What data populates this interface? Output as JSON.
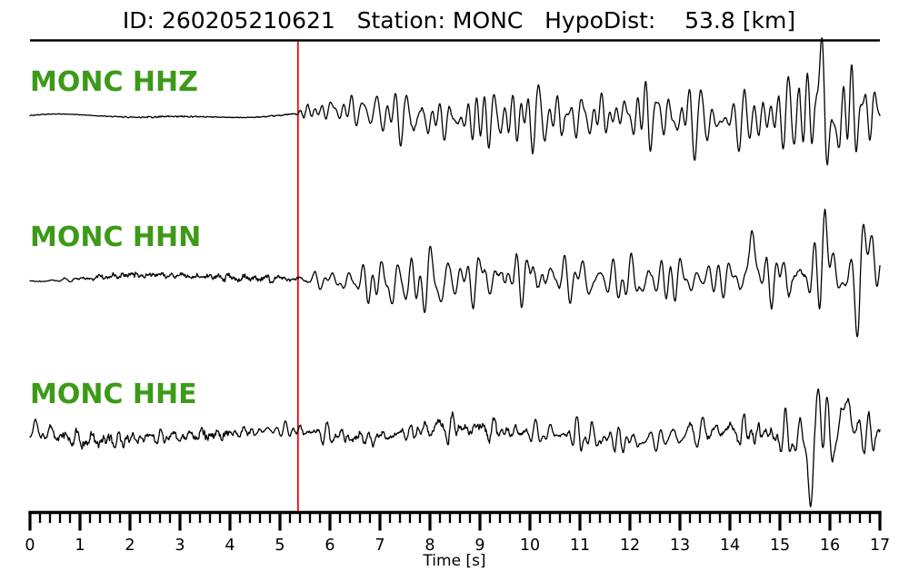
{
  "header": {
    "title": "ID: 260205210621   Station: MONC   HypoDist:    53.8 [km]"
  },
  "colors": {
    "background": "#ffffff",
    "trace": "#000000",
    "axis": "#000000",
    "label_green": "#3d9a18",
    "pick_line_red": "#ff0000"
  },
  "chart_data": {
    "type": "line",
    "title": "ID: 260205210621   Station: MONC   HypoDist:    53.8 [km]",
    "event_id": "260205210621",
    "station": "MONC",
    "hypodist_km": 53.8,
    "xlabel": "Time [s]",
    "xlim": [
      0,
      17
    ],
    "x_major_tick_s": 1,
    "x_minor_tick_s": 0.2,
    "x_tick_labels": [
      "0",
      "1",
      "2",
      "3",
      "4",
      "5",
      "6",
      "7",
      "8",
      "9",
      "10",
      "11",
      "12",
      "13",
      "14",
      "15",
      "16",
      "17"
    ],
    "grid": false,
    "legend": false,
    "pick_time_s": 5.36,
    "traces": [
      {
        "label": "MONC HHZ",
        "seed": 42,
        "freqs": [
          3.4,
          4.6,
          5.6,
          6.8,
          2.4
        ],
        "drift_amp": 6,
        "drift_period_s": 5.2,
        "sig_envelope": [
          [
            0,
            0
          ],
          [
            5.3,
            0
          ],
          [
            5.45,
            12
          ],
          [
            6.2,
            20
          ],
          [
            7,
            28
          ],
          [
            8,
            34
          ],
          [
            9,
            38
          ],
          [
            10.5,
            33
          ],
          [
            12,
            36
          ],
          [
            13.5,
            34
          ],
          [
            14.5,
            40
          ],
          [
            15.3,
            42
          ],
          [
            16,
            48
          ],
          [
            16.5,
            44
          ],
          [
            17,
            36
          ]
        ],
        "hf_envelope": [
          [
            0,
            0.9
          ],
          [
            5.3,
            0.9
          ],
          [
            5.5,
            1.6
          ],
          [
            17,
            1.6
          ]
        ],
        "spikes": [
          {
            "t": 15.85,
            "amp": 55,
            "w": 0.09
          },
          {
            "t": 16.02,
            "amp": -58,
            "w": 0.09
          }
        ]
      },
      {
        "label": "MONC HHN",
        "seed": 1337,
        "freqs": [
          3.0,
          4.2,
          5.2,
          6.2,
          2.0
        ],
        "drift_amp": 5,
        "drift_period_s": 6.5,
        "sig_envelope": [
          [
            0,
            1.5
          ],
          [
            5.25,
            2.5
          ],
          [
            5.5,
            8
          ],
          [
            6,
            12
          ],
          [
            6.6,
            17
          ],
          [
            7.2,
            23
          ],
          [
            8,
            27
          ],
          [
            9,
            24
          ],
          [
            10,
            27
          ],
          [
            11,
            24
          ],
          [
            12,
            22
          ],
          [
            13,
            25
          ],
          [
            14,
            30
          ],
          [
            14.6,
            38
          ],
          [
            15.2,
            30
          ],
          [
            16,
            38
          ],
          [
            16.6,
            42
          ],
          [
            17,
            30
          ]
        ],
        "hf_envelope": [
          [
            0,
            3.2
          ],
          [
            5.4,
            3.2
          ],
          [
            6,
            2
          ],
          [
            17,
            1.6
          ]
        ],
        "spikes": [
          {
            "t": 14.45,
            "amp": 55,
            "w": 0.07
          },
          {
            "t": 15.9,
            "amp": 52,
            "w": 0.08
          },
          {
            "t": 16.55,
            "amp": -48,
            "w": 0.08
          },
          {
            "t": 16.75,
            "amp": 60,
            "w": 0.1
          }
        ]
      },
      {
        "label": "MONC HHE",
        "seed": 2024,
        "freqs": [
          3.6,
          4.8,
          6.0,
          7.2,
          2.6
        ],
        "drift_amp": 8,
        "drift_period_s": 4.8,
        "sig_envelope": [
          [
            0,
            11
          ],
          [
            1.5,
            10
          ],
          [
            3,
            8
          ],
          [
            4.2,
            7.5
          ],
          [
            5.2,
            8
          ],
          [
            6,
            10
          ],
          [
            7,
            13
          ],
          [
            8,
            16
          ],
          [
            9,
            15
          ],
          [
            10,
            14.5
          ],
          [
            11,
            15
          ],
          [
            12,
            13.5
          ],
          [
            13,
            13
          ],
          [
            14,
            15
          ],
          [
            15,
            18
          ],
          [
            15.8,
            30
          ],
          [
            16.4,
            26
          ],
          [
            17,
            18
          ]
        ],
        "hf_envelope": [
          [
            0,
            5
          ],
          [
            5.3,
            4.5
          ],
          [
            7,
            4
          ],
          [
            17,
            3.5
          ]
        ],
        "spikes": [
          {
            "t": 15.62,
            "amp": -72,
            "w": 0.07
          },
          {
            "t": 15.78,
            "amp": 50,
            "w": 0.08
          },
          {
            "t": 16.35,
            "amp": 48,
            "w": 0.09
          }
        ]
      }
    ]
  }
}
